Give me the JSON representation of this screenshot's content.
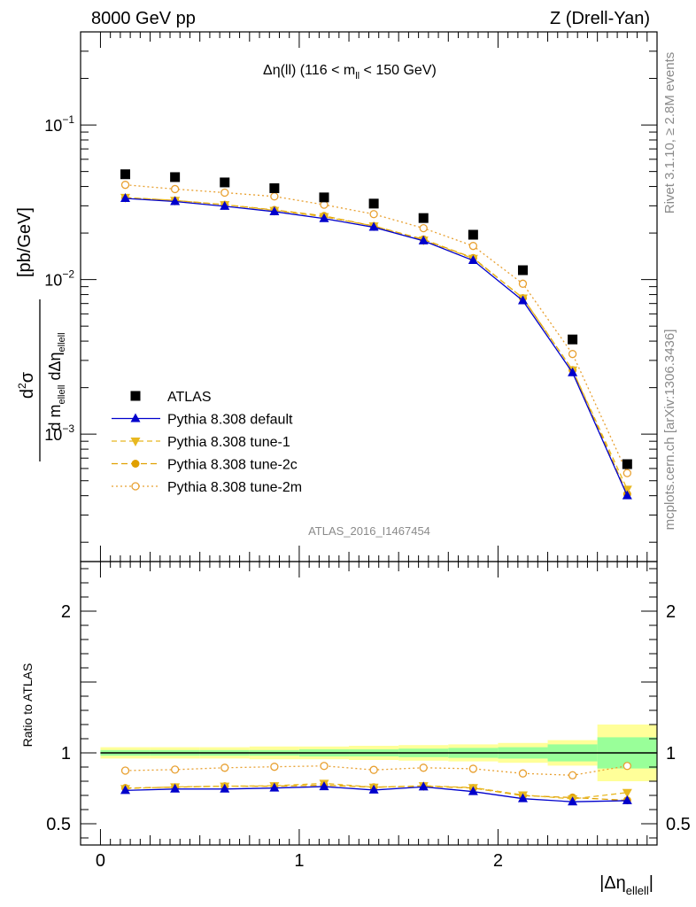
{
  "header": {
    "left": "8000 GeV pp",
    "right": "Z (Drell-Yan)"
  },
  "side_text": {
    "rivet": "Rivet 3.1.10, ≥ 2.8M events",
    "source": "mcplots.cern.ch [arXiv:1306.3436]"
  },
  "watermark": "ATLAS_2016_I1467454",
  "colors": {
    "data": "#000000",
    "default": "#0000cc",
    "tune1": "#e8b820",
    "tune2c": "#e0a000",
    "tune2m": "#e8a030",
    "band_inner": "#99ff99",
    "band_outer": "#ffff99"
  },
  "chart_data": [
    {
      "type": "scatter",
      "panel": "main",
      "title": "Δη(ll) (116 < m",
      "title_sub": "ll",
      "title_tail": " < 150 GeV)",
      "ylabel_unit": "[pb/GeV]",
      "log_y": true,
      "ylim": [
        0.00015,
        0.4
      ],
      "xlim": [
        -0.1,
        2.8
      ],
      "y_ticks": [
        {
          "value": 0.1,
          "base": "10",
          "exp": "−1"
        },
        {
          "value": 0.01,
          "base": "10",
          "exp": "−2"
        },
        {
          "value": 0.001,
          "base": "10",
          "exp": "−3"
        }
      ],
      "x": [
        0.125,
        0.375,
        0.625,
        0.875,
        1.125,
        1.375,
        1.625,
        1.875,
        2.125,
        2.375,
        2.65
      ],
      "series": [
        {
          "name": "ATLAS",
          "marker": "square",
          "values": [
            0.048,
            0.046,
            0.0425,
            0.039,
            0.034,
            0.031,
            0.025,
            0.0195,
            0.0115,
            0.0041,
            0.00064
          ]
        },
        {
          "name": "Pythia 8.308 default",
          "marker": "triangle-up",
          "line": "solid",
          "values": [
            0.0335,
            0.032,
            0.0298,
            0.0275,
            0.0248,
            0.0218,
            0.0178,
            0.0133,
            0.0073,
            0.0025,
            0.0004
          ]
        },
        {
          "name": "Pythia 8.308 tune-1",
          "marker": "triangle-down",
          "line": "dashed",
          "values": [
            0.034,
            0.0325,
            0.0305,
            0.028,
            0.0255,
            0.0222,
            0.018,
            0.0137,
            0.0076,
            0.0026,
            0.00044
          ]
        },
        {
          "name": "Pythia 8.308 tune-2c",
          "marker": "circle",
          "line": "dashed",
          "values": [
            0.0338,
            0.0325,
            0.0305,
            0.0282,
            0.0258,
            0.0222,
            0.0182,
            0.0138,
            0.0076,
            0.0026,
            0.00041
          ]
        },
        {
          "name": "Pythia 8.308 tune-2m",
          "marker": "open-circle",
          "line": "dotted",
          "values": [
            0.041,
            0.0385,
            0.0365,
            0.0345,
            0.0305,
            0.0265,
            0.0215,
            0.0165,
            0.0094,
            0.0033,
            0.00056
          ]
        }
      ]
    },
    {
      "type": "line",
      "panel": "ratio",
      "ylabel": "Ratio to ATLAS",
      "xlabel": "|Δη",
      "xlabel_sub": "ellell",
      "xlabel_tail": "|",
      "ylim": [
        0.35,
        2.35
      ],
      "xlim": [
        -0.1,
        2.8
      ],
      "y_tick_labels": [
        {
          "value": 0.5,
          "label": "0.5"
        },
        {
          "value": 1,
          "label": "1"
        },
        {
          "value": 2,
          "label": "2"
        }
      ],
      "x_tick_labels": [
        {
          "value": 0,
          "label": "0"
        },
        {
          "value": 1,
          "label": "1"
        },
        {
          "value": 2,
          "label": "2"
        }
      ],
      "bin_edges": [
        0,
        0.25,
        0.5,
        0.75,
        1.0,
        1.25,
        1.5,
        1.75,
        2.0,
        2.25,
        2.5,
        2.8
      ],
      "band_inner_halfwidth": [
        0.02,
        0.02,
        0.02,
        0.02,
        0.025,
        0.025,
        0.03,
        0.035,
        0.04,
        0.06,
        0.11
      ],
      "band_outer_halfwidth": [
        0.04,
        0.04,
        0.04,
        0.045,
        0.045,
        0.05,
        0.055,
        0.06,
        0.07,
        0.09,
        0.2
      ],
      "x": [
        0.125,
        0.375,
        0.625,
        0.875,
        1.125,
        1.375,
        1.625,
        1.875,
        2.125,
        2.375,
        2.65
      ],
      "series": [
        {
          "name": "Pythia 8.308 default",
          "values": [
            0.735,
            0.745,
            0.745,
            0.752,
            0.762,
            0.738,
            0.76,
            0.727,
            0.677,
            0.655,
            0.663
          ]
        },
        {
          "name": "Pythia 8.308 tune-1",
          "values": [
            0.748,
            0.76,
            0.765,
            0.768,
            0.785,
            0.758,
            0.768,
            0.755,
            0.703,
            0.675,
            0.72
          ]
        },
        {
          "name": "Pythia 8.308 tune-2c",
          "values": [
            0.752,
            0.758,
            0.765,
            0.765,
            0.772,
            0.758,
            0.765,
            0.752,
            0.698,
            0.685,
            0.665
          ]
        },
        {
          "name": "Pythia 8.308 tune-2m",
          "values": [
            0.875,
            0.882,
            0.895,
            0.902,
            0.908,
            0.88,
            0.895,
            0.888,
            0.855,
            0.842,
            0.908
          ]
        }
      ]
    }
  ]
}
